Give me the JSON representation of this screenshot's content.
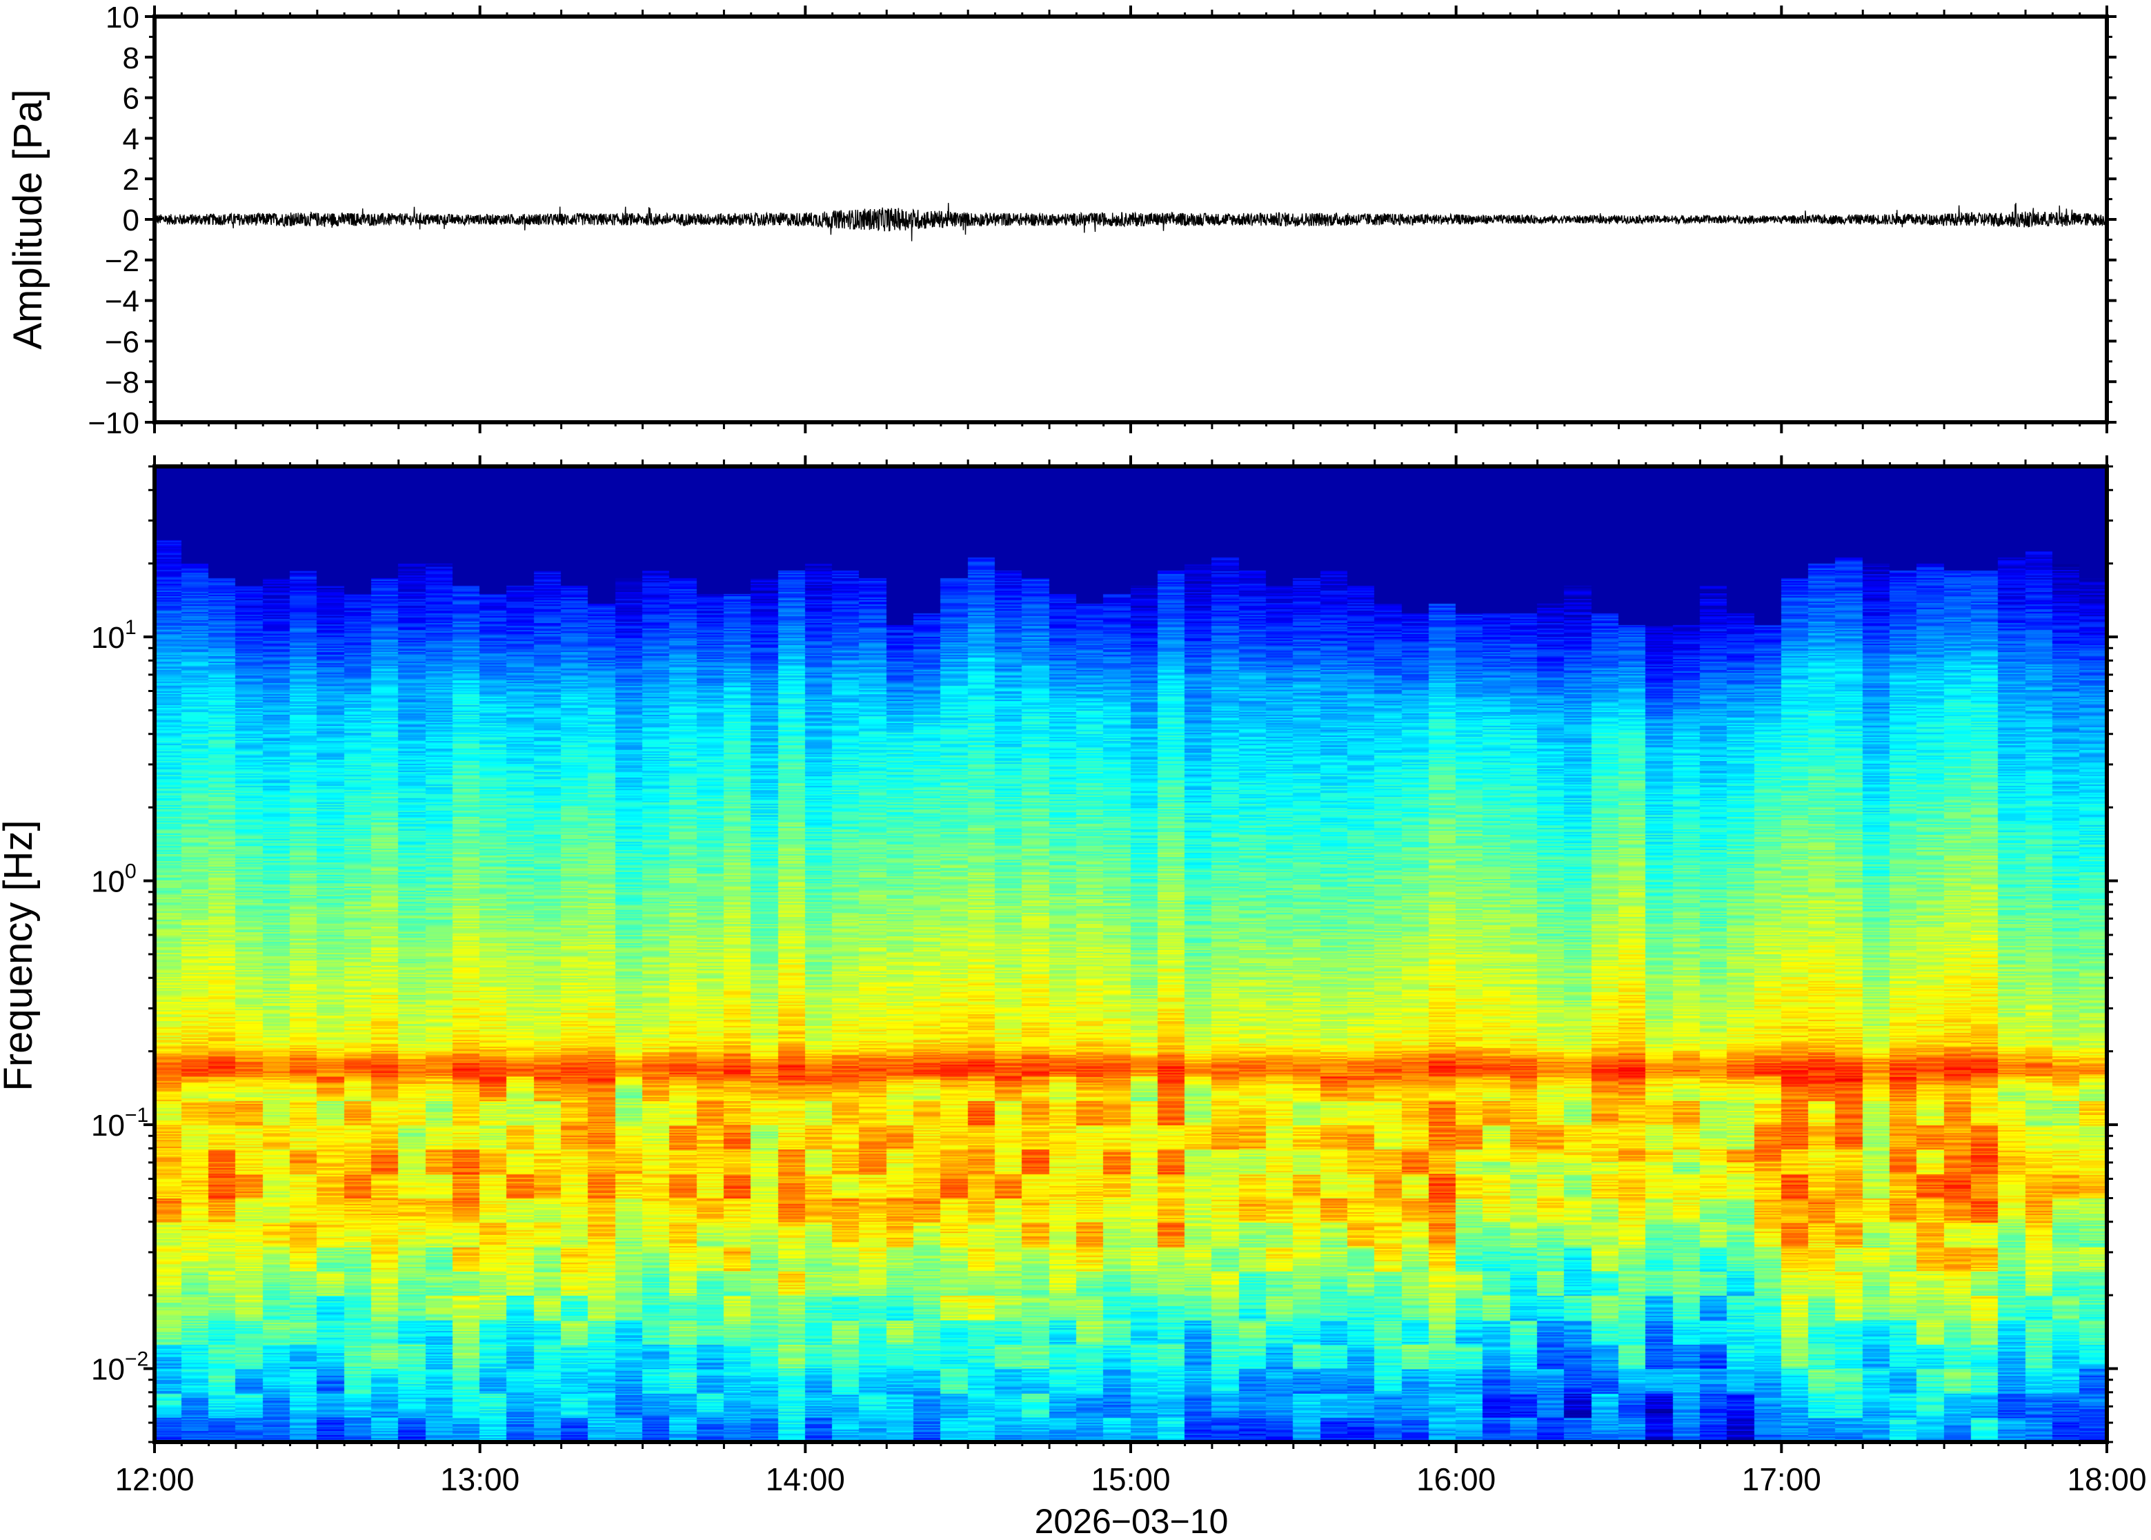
{
  "chart_data": [
    {
      "type": "line",
      "panel": "waveform",
      "ylabel": "Amplitude [Pa]",
      "ylim": [
        -10,
        10
      ],
      "yticks": [
        10,
        8,
        6,
        4,
        2,
        0,
        -2,
        -4,
        -6,
        -8,
        -10
      ],
      "ytick_labels": [
        "10",
        "8",
        "6",
        "4",
        "2",
        "0",
        "−2",
        "−4",
        "−6",
        "−8",
        "−10"
      ],
      "xlim": [
        "12:00",
        "18:00"
      ],
      "trace_color": "#000000",
      "series": [
        {
          "x": [
            "12:00",
            "12:15",
            "12:30",
            "12:45",
            "13:00",
            "13:15",
            "13:30",
            "13:45",
            "14:00",
            "14:15",
            "14:30",
            "14:45",
            "15:00",
            "15:15",
            "15:30",
            "15:45",
            "16:00",
            "16:15",
            "16:30",
            "16:45",
            "17:00",
            "17:15",
            "17:30",
            "17:45",
            "18:00"
          ],
          "amplitude_envelope": [
            0.25,
            0.3,
            0.35,
            0.3,
            0.25,
            0.3,
            0.3,
            0.3,
            0.35,
            0.6,
            0.35,
            0.3,
            0.35,
            0.3,
            0.35,
            0.3,
            0.25,
            0.2,
            0.2,
            0.2,
            0.2,
            0.25,
            0.3,
            0.4,
            0.3
          ]
        }
      ]
    },
    {
      "type": "heatmap",
      "panel": "spectrogram",
      "ylabel": "Frequency [Hz]",
      "xlabel": "2026−03−10",
      "y_scale": "log",
      "ylim_hz": [
        0.005,
        50
      ],
      "yticks": [
        {
          "base": "10",
          "exp": "1"
        },
        {
          "base": "10",
          "exp": "0"
        },
        {
          "base": "10",
          "exp": "−1"
        },
        {
          "base": "10",
          "exp": "−2"
        }
      ],
      "ytick_values": [
        10,
        1,
        0.1,
        0.01
      ],
      "xtick_labels": [
        "12:00",
        "13:00",
        "14:00",
        "15:00",
        "16:00",
        "17:00",
        "18:00"
      ],
      "xlim": [
        "12:00",
        "18:00"
      ],
      "colormap": "jet",
      "time_columns": 72,
      "upper_edge_hz": [
        20,
        16,
        14,
        13,
        14,
        15,
        13,
        12,
        14,
        16,
        16,
        13,
        12,
        13,
        15,
        13,
        11,
        14,
        15,
        14,
        12,
        12,
        14,
        15,
        16,
        15,
        14,
        9,
        10,
        14,
        17,
        15,
        14,
        12,
        11,
        12,
        13,
        15,
        16,
        17,
        15,
        13,
        14,
        15,
        13,
        11,
        10,
        11,
        10,
        10,
        10,
        11,
        13,
        10,
        9,
        9,
        9,
        13,
        10,
        9,
        14,
        16,
        17,
        16,
        15,
        16,
        15,
        15,
        17,
        18,
        16,
        14
      ],
      "band_center_hz": 0.17,
      "low_freq_quiet_period": [
        "16:00",
        "17:00"
      ]
    }
  ]
}
